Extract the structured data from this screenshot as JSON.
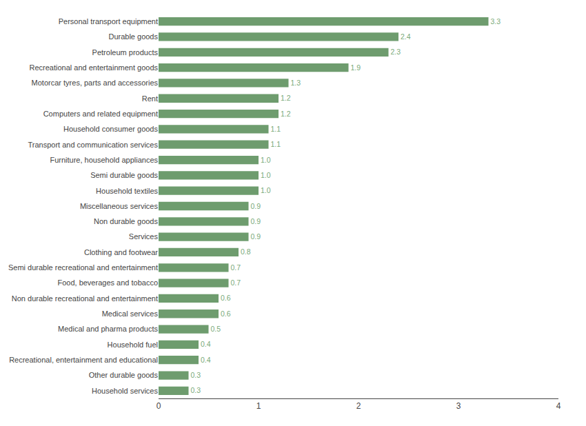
{
  "chart_data": {
    "type": "bar",
    "orientation": "horizontal",
    "categories": [
      "Personal transport equipment",
      "Durable goods",
      "Petroleum products",
      "Recreational and entertainment goods",
      "Motorcar tyres, parts and accessories",
      "Rent",
      "Computers and related equipment",
      "Household consumer goods",
      "Transport and communication services",
      "Furniture, household appliances",
      "Semi durable goods",
      "Household textiles",
      "Miscellaneous services",
      "Non durable goods",
      "Services",
      "Clothing and footwear",
      "Semi durable recreational and entertainment",
      "Food, beverages and tobacco",
      "Non durable recreational and entertainment",
      "Medical services",
      "Medical and pharma products",
      "Household fuel",
      "Recreational, entertainment and educational",
      "Other durable goods",
      "Household services"
    ],
    "values": [
      3.3,
      2.4,
      2.3,
      1.9,
      1.3,
      1.2,
      1.2,
      1.1,
      1.1,
      1.0,
      1.0,
      1.0,
      0.9,
      0.9,
      0.9,
      0.8,
      0.7,
      0.7,
      0.6,
      0.6,
      0.5,
      0.4,
      0.4,
      0.3,
      0.3
    ],
    "value_labels": [
      "3.3",
      "2.4",
      "2.3",
      "1.9",
      "1.3",
      "1.2",
      "1.2",
      "1.1",
      "1.1",
      "1.0",
      "1.0",
      "1.0",
      "0.9",
      "0.9",
      "0.9",
      "0.8",
      "0.7",
      "0.7",
      "0.6",
      "0.6",
      "0.5",
      "0.4",
      "0.4",
      "0.3",
      "0.3"
    ],
    "color": "#6e9c6e",
    "data_labels": true,
    "xlim": [
      0,
      4
    ],
    "xticks": [
      0,
      1,
      2,
      3,
      4
    ],
    "grid": false
  }
}
